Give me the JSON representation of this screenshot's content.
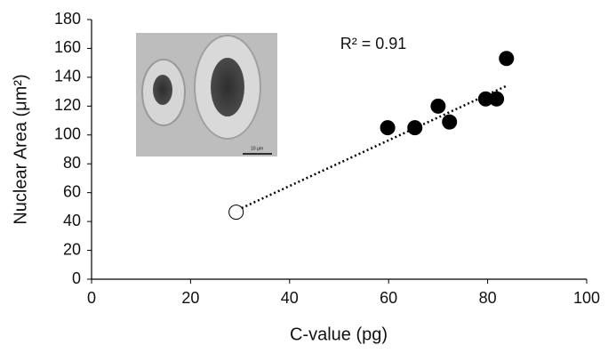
{
  "chart_data": {
    "type": "scatter",
    "xlabel": "C-value (pg)",
    "ylabel": "Nuclear Area (μm²)",
    "annotation": "R² = 0.91",
    "inset_scale_label": "10 µm",
    "xlim": [
      0,
      100
    ],
    "xticks": [
      0,
      20,
      40,
      60,
      80,
      100
    ],
    "ylim": [
      0,
      180
    ],
    "yticks": [
      0,
      20,
      40,
      60,
      80,
      100,
      120,
      140,
      160,
      180
    ],
    "series": [
      {
        "color": "#000000",
        "filled": true,
        "x": [
          59.8,
          65.3,
          70.0,
          72.3,
          79.6,
          81.8,
          83.8
        ],
        "values": [
          105,
          105,
          120,
          109,
          125,
          125,
          153
        ]
      },
      {
        "color": "#000000",
        "filled": false,
        "x": [
          29.2
        ],
        "values": [
          46.5
        ]
      }
    ],
    "trendline": {
      "color": "#000000",
      "x": [
        29.5,
        83.8
      ],
      "values": [
        48,
        134
      ]
    }
  }
}
